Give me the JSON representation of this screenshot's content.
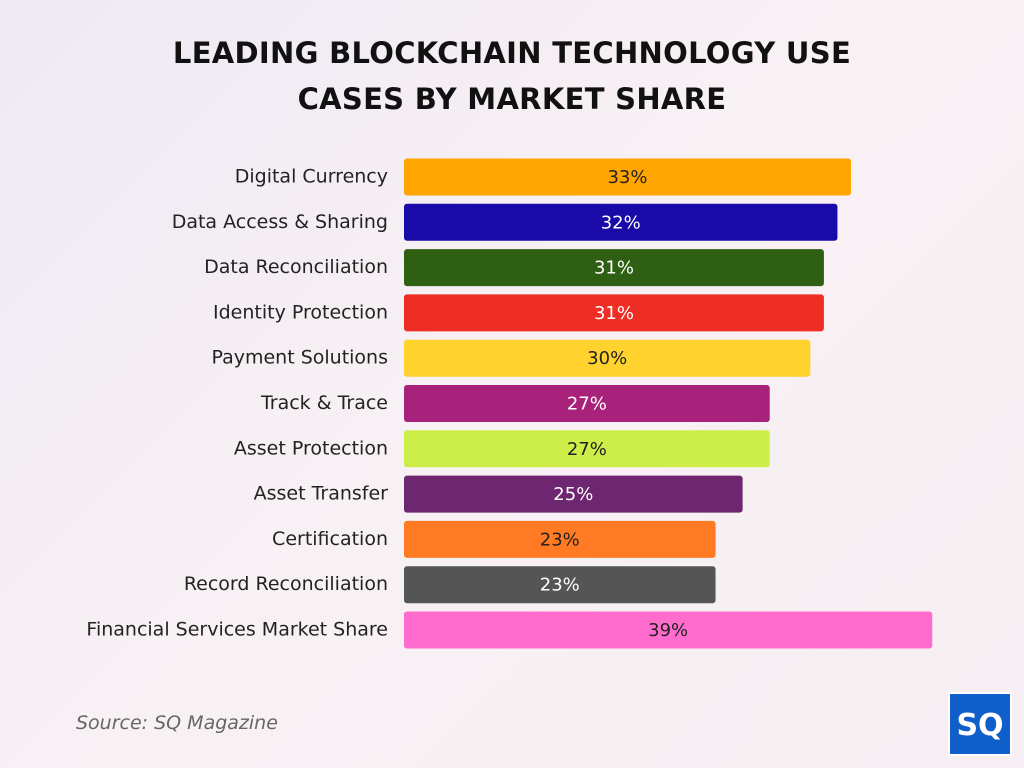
{
  "chart_data": {
    "type": "bar",
    "orientation": "horizontal",
    "title": "LEADING BLOCKCHAIN TECHNOLOGY USE CASES BY MARKET SHARE",
    "categories": [
      "Digital Currency",
      "Data Access & Sharing",
      "Data Reconciliation",
      "Identity Protection",
      "Payment Solutions",
      "Track & Trace",
      "Asset Protection",
      "Asset Transfer",
      "Certification",
      "Record Reconciliation",
      "Financial Services Market Share"
    ],
    "values": [
      33,
      32,
      31,
      31,
      30,
      27,
      27,
      25,
      23,
      23,
      39
    ],
    "value_labels": [
      "33%",
      "32%",
      "31%",
      "31%",
      "30%",
      "27%",
      "27%",
      "25%",
      "23%",
      "23%",
      "39%"
    ],
    "colors": [
      "#ffa500",
      "#1a0aa8",
      "#2f5f12",
      "#ee2e24",
      "#ffd22e",
      "#a8217a",
      "#cdee48",
      "#6e2670",
      "#ff7a22",
      "#555555",
      "#ff6ccd"
    ],
    "source": "Source: SQ Magazine",
    "logo": "SQ"
  }
}
